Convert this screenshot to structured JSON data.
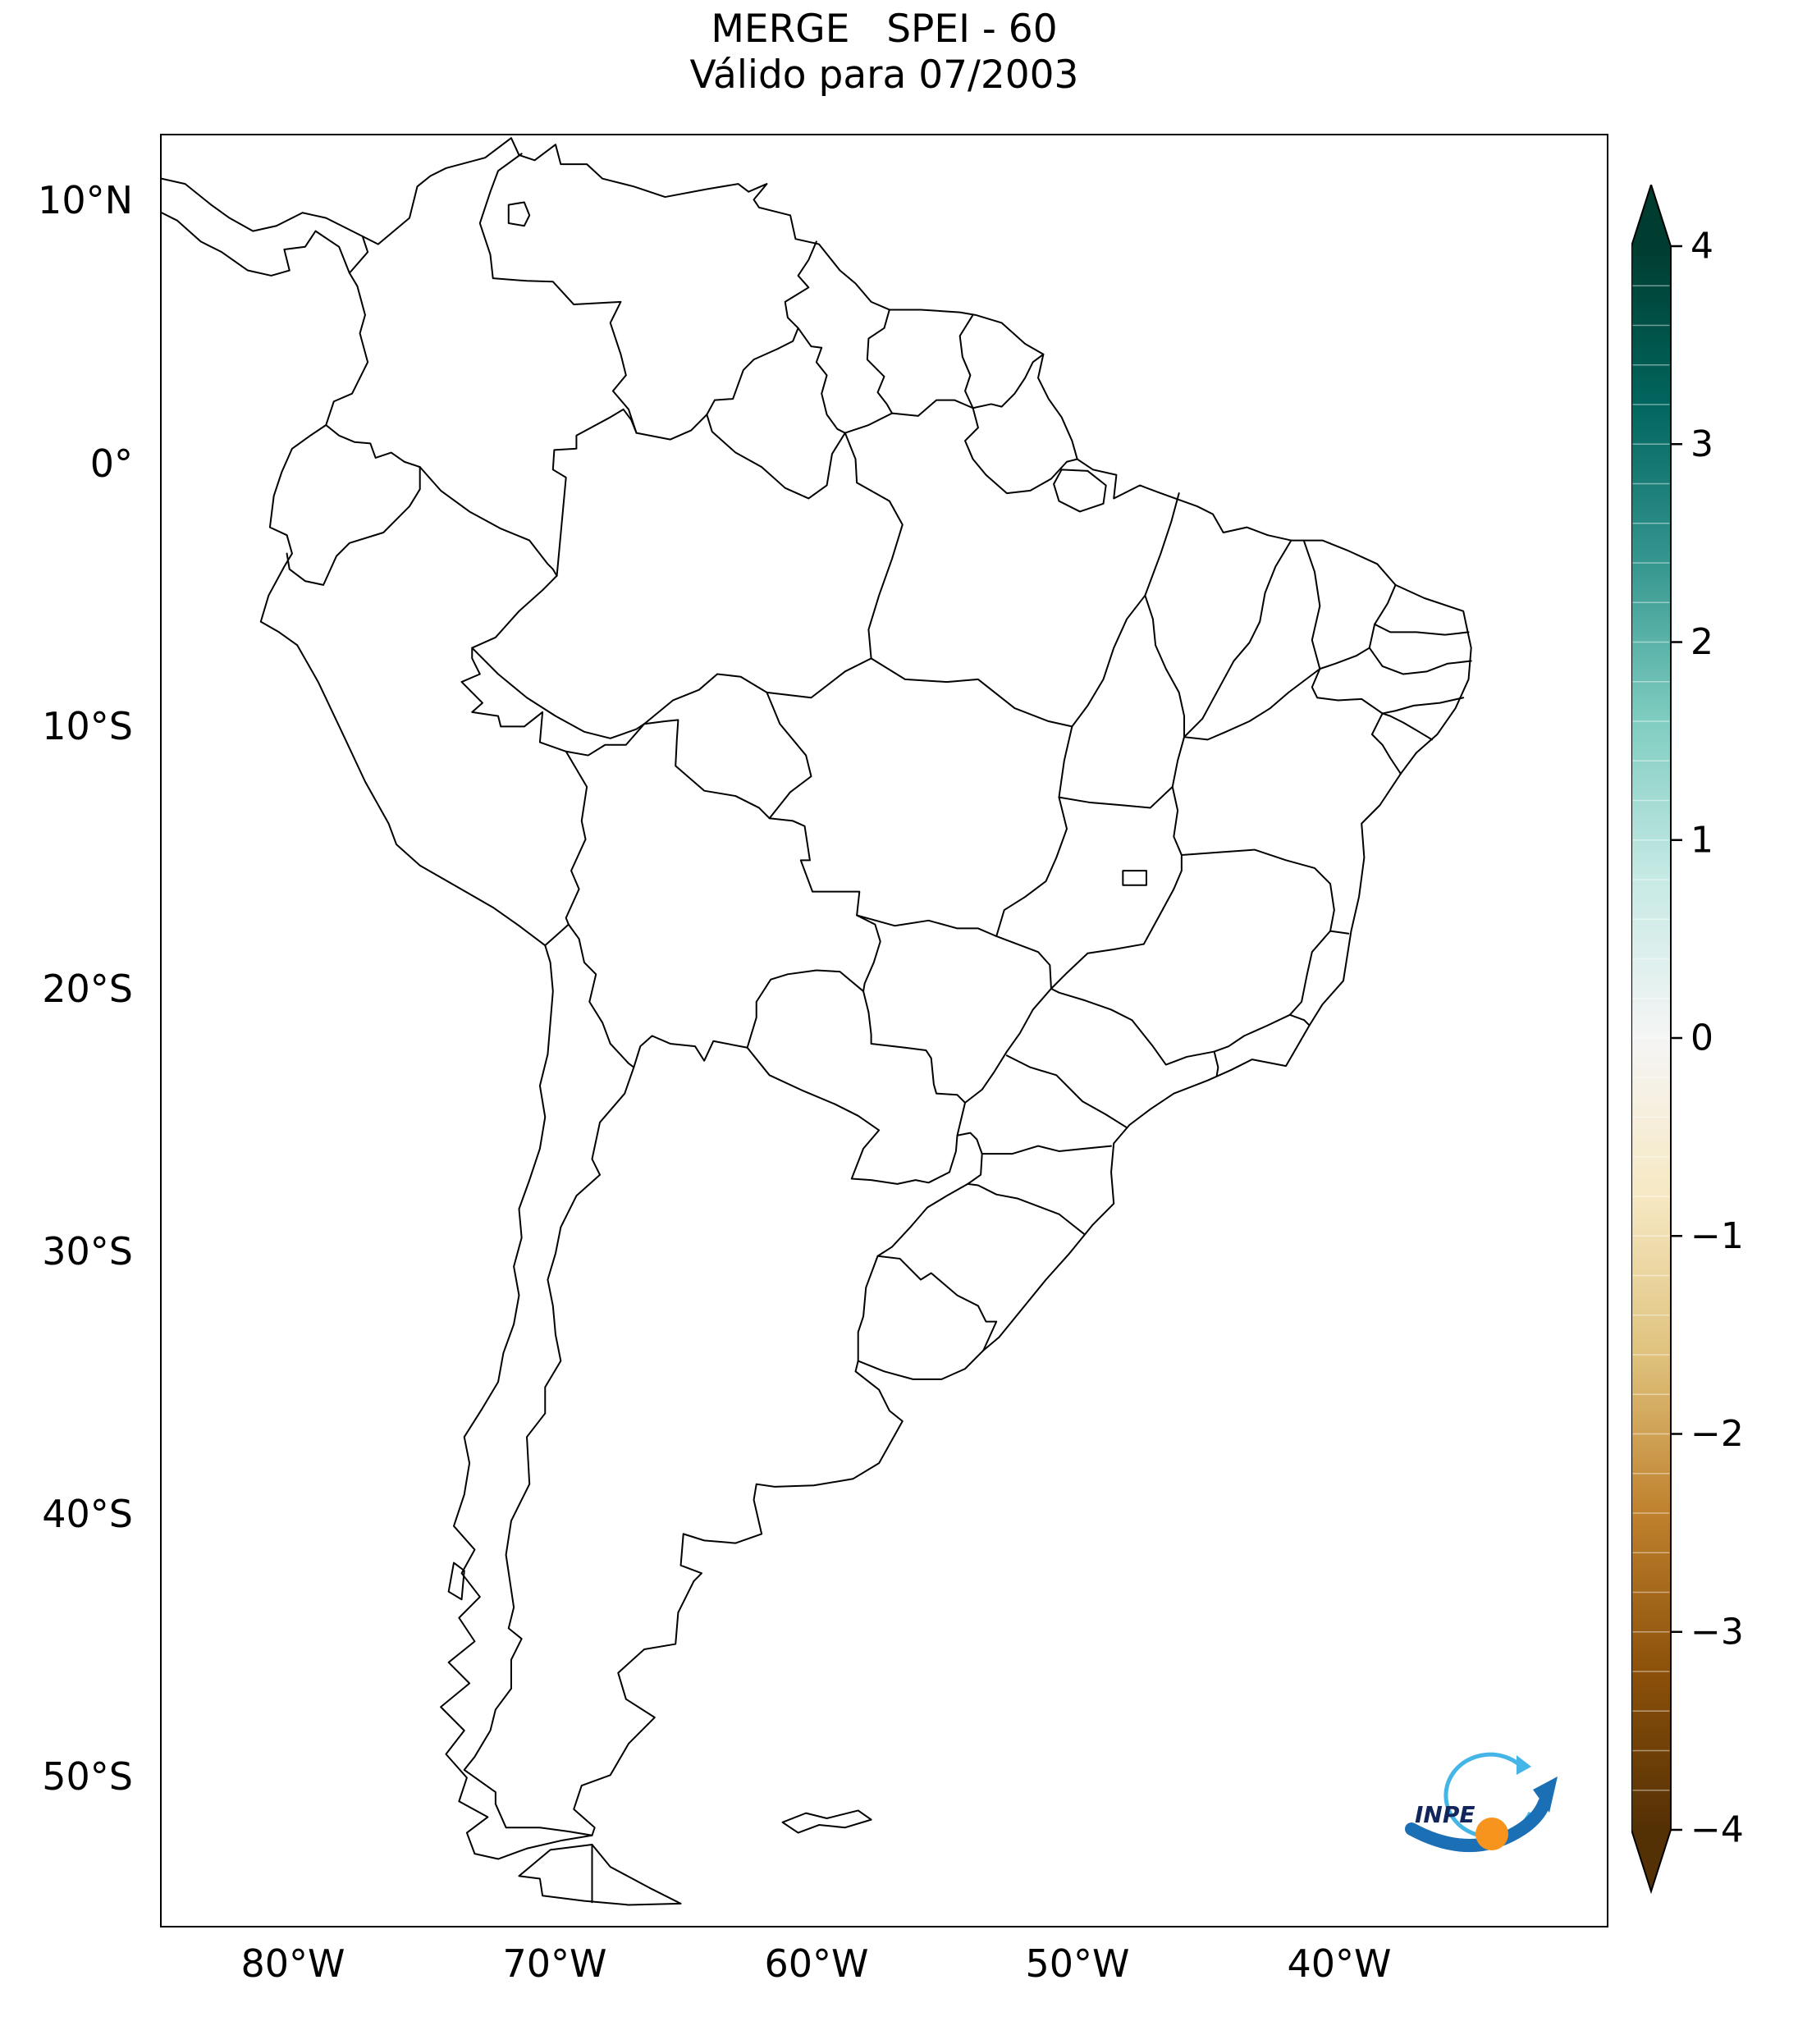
{
  "title": {
    "line1": "MERGE   SPEI - 60",
    "line2": "Válido para 07/2003"
  },
  "axes": {
    "lat_ticks": [
      {
        "label": "10°N"
      },
      {
        "label": "0°"
      },
      {
        "label": "10°S"
      },
      {
        "label": "20°S"
      },
      {
        "label": "30°S"
      },
      {
        "label": "40°S"
      },
      {
        "label": "50°S"
      }
    ],
    "lon_ticks": [
      {
        "label": "80°W"
      },
      {
        "label": "70°W"
      },
      {
        "label": "60°W"
      },
      {
        "label": "50°W"
      },
      {
        "label": "40°W"
      }
    ]
  },
  "colorbar": {
    "tick_labels": [
      "4",
      "3",
      "2",
      "1",
      "0",
      "−1",
      "−2",
      "−3",
      "−4"
    ],
    "range": {
      "min": -4,
      "max": 4
    },
    "colormap_stops": [
      "#543005",
      "#8c510a",
      "#bf812d",
      "#dfc27d",
      "#f6e8c3",
      "#f5f5f5",
      "#c7eae5",
      "#80cdc1",
      "#35978f",
      "#01665e",
      "#003c30"
    ]
  },
  "map": {
    "region": "South America",
    "line_color": "#000000",
    "background": "#ffffff"
  },
  "logo": {
    "text": "INPE",
    "colors": {
      "arrow": "#1b6fb5",
      "swirl": "#45b5e8",
      "dot": "#f7941e",
      "text": "#13265c"
    }
  }
}
